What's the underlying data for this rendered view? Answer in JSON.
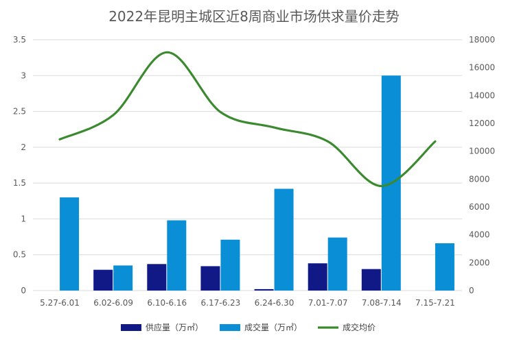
{
  "chart_data": {
    "type": "bar",
    "title": "2022年昆明主城区近8周商业市场供求量价走势",
    "categories": [
      "5.27-6.01",
      "6.02-6.09",
      "6.10-6.16",
      "6.17-6.23",
      "6.24-6.30",
      "7.01-7.07",
      "7.08-7.14",
      "7.15-7.21"
    ],
    "y_left": {
      "ticks": [
        "0",
        "0.5",
        "1",
        "1.5",
        "2",
        "2.5",
        "3",
        "3.5"
      ],
      "range": [
        0,
        3.5
      ]
    },
    "y_right": {
      "ticks": [
        "0",
        "2000",
        "4000",
        "6000",
        "8000",
        "10000",
        "12000",
        "14000",
        "16000",
        "18000"
      ],
      "range": [
        0,
        18000
      ]
    },
    "series": [
      {
        "name": "供应量（万㎡）",
        "type": "bar",
        "axis": "left",
        "color": "#101986",
        "values": [
          0,
          0.29,
          0.37,
          0.34,
          0.02,
          0.38,
          0.3,
          0
        ]
      },
      {
        "name": "成交量（万㎡）",
        "type": "bar",
        "axis": "left",
        "color": "#0a8fd6",
        "values": [
          1.3,
          0.35,
          0.98,
          0.71,
          1.42,
          0.74,
          3.0,
          0.66
        ]
      },
      {
        "name": "成交均价",
        "type": "line",
        "axis": "right",
        "color": "#3b8a2f",
        "values": [
          10850,
          12600,
          17100,
          12800,
          11700,
          10700,
          7500,
          10700
        ]
      }
    ],
    "grid": true,
    "legend": "bottom"
  }
}
